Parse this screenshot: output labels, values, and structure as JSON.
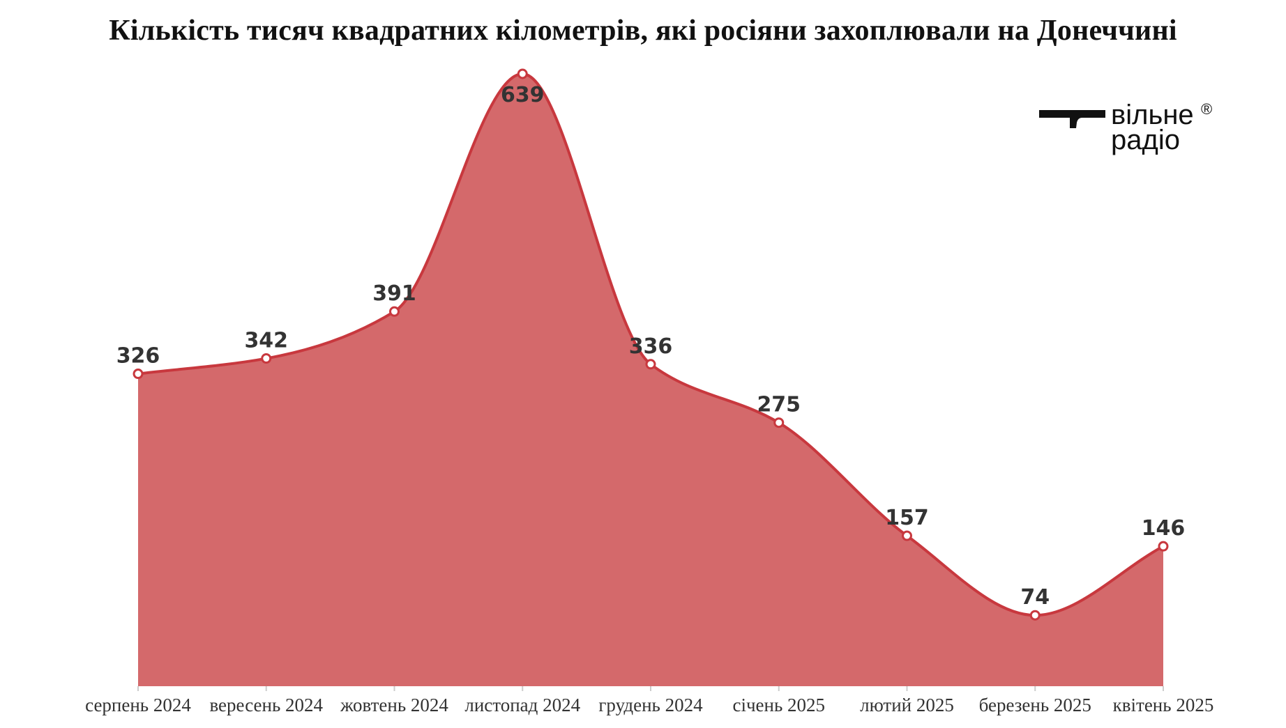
{
  "chart_data": {
    "type": "area",
    "title": "Кількість тисяч квадратних кілометрів, які росіяни захоплювали на Донеччині",
    "categories": [
      "серпень 2024",
      "вересень 2024",
      "жовтень 2024",
      "листопад 2024",
      "грудень 2024",
      "січень 2025",
      "лютий 2025",
      "березень 2025",
      "квітень 2025"
    ],
    "values": [
      326,
      342,
      391,
      639,
      336,
      275,
      157,
      74,
      146
    ],
    "data_labels": [
      "326",
      "342",
      "391",
      "639",
      "336",
      "275",
      "157",
      "74",
      "146"
    ],
    "xlabel": "",
    "ylabel": "",
    "ylim": [
      0,
      639
    ],
    "grid": false,
    "legend": "none",
    "colors": {
      "fill": "#d4696b",
      "line": "#c8383e",
      "marker_fill": "#ffffff"
    }
  },
  "logo": {
    "line1": "вільне",
    "line2": "радіо",
    "reg": "®"
  }
}
